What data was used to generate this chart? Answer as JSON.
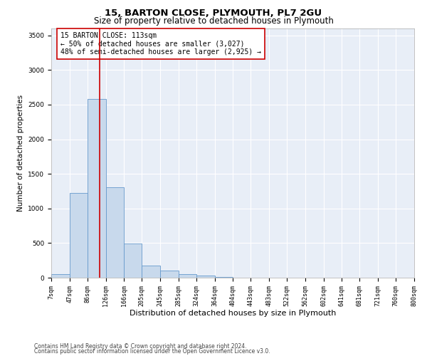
{
  "title": "15, BARTON CLOSE, PLYMOUTH, PL7 2GU",
  "subtitle": "Size of property relative to detached houses in Plymouth",
  "xlabel": "Distribution of detached houses by size in Plymouth",
  "ylabel": "Number of detached properties",
  "bar_color": "#c8d9ec",
  "bar_edge_color": "#6699cc",
  "vline_x": 113,
  "vline_color": "#cc0000",
  "annotation_text": "15 BARTON CLOSE: 113sqm\n← 50% of detached houses are smaller (3,027)\n48% of semi-detached houses are larger (2,925) →",
  "annotation_box_facecolor": "white",
  "annotation_box_edgecolor": "#cc0000",
  "footer_line1": "Contains HM Land Registry data © Crown copyright and database right 2024.",
  "footer_line2": "Contains public sector information licensed under the Open Government Licence v3.0.",
  "bin_edges": [
    7,
    47,
    86,
    126,
    166,
    205,
    245,
    285,
    324,
    364,
    404,
    443,
    483,
    522,
    562,
    602,
    641,
    681,
    721,
    760,
    800
  ],
  "bar_heights": [
    50,
    1220,
    2580,
    1310,
    490,
    175,
    100,
    50,
    30,
    10,
    0,
    0,
    0,
    0,
    0,
    0,
    0,
    0,
    0,
    0
  ],
  "ylim": [
    0,
    3600
  ],
  "yticks": [
    0,
    500,
    1000,
    1500,
    2000,
    2500,
    3000,
    3500
  ],
  "figure_bg": "#ffffff",
  "axes_bg": "#e8eef7",
  "grid_color": "#ffffff",
  "title_fontsize": 9.5,
  "subtitle_fontsize": 8.5,
  "tick_fontsize": 6,
  "ylabel_fontsize": 7.5,
  "xlabel_fontsize": 8,
  "annotation_fontsize": 7,
  "footer_fontsize": 5.5
}
